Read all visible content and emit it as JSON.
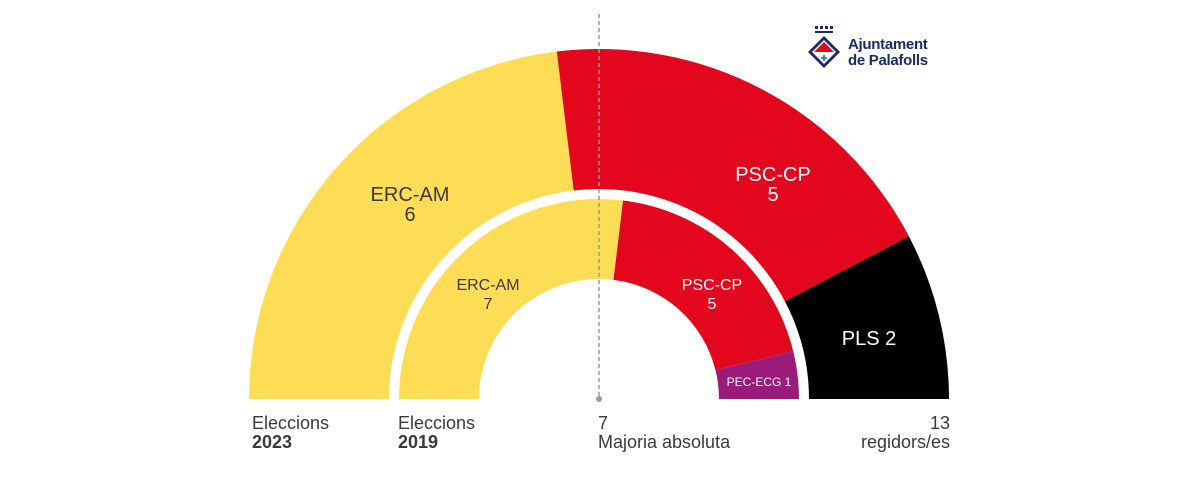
{
  "chart_data": {
    "type": "pie",
    "layout": "parliament-semicircle",
    "total_seats": 13,
    "majority": 7,
    "rings": [
      {
        "name": "Eleccions 2023",
        "parties": [
          {
            "label": "ERC-AM",
            "seats": 6,
            "color": "#FDDD55"
          },
          {
            "label": "PSC-CP",
            "seats": 5,
            "color": "#E3071D"
          },
          {
            "label": "PLS",
            "seats": 2,
            "color": "#000000"
          }
        ]
      },
      {
        "name": "Eleccions 2019",
        "parties": [
          {
            "label": "ERC-AM",
            "seats": 7,
            "color": "#FDDD55"
          },
          {
            "label": "PSC-CP",
            "seats": 5,
            "color": "#E3071D"
          },
          {
            "label": "PEC-ECG",
            "seats": 1,
            "color": "#9B1B7A"
          }
        ]
      }
    ]
  },
  "labels": {
    "outer_erc": "ERC-AM",
    "outer_erc_seats": "6",
    "outer_psc": "PSC-CP",
    "outer_psc_seats": "5",
    "outer_pls": "PLS 2",
    "inner_erc": "ERC-AM",
    "inner_erc_seats": "7",
    "inner_psc": "PSC-CP",
    "inner_psc_seats": "5",
    "inner_pec": "PEC-ECG 1"
  },
  "footer": {
    "outer_line1": "Eleccions",
    "outer_line2": "2023",
    "inner_line1": "Eleccions",
    "inner_line2": "2019",
    "majority_value": "7",
    "majority_label": "Majoria absoluta",
    "total_value": "13",
    "total_label": "regidors/es"
  },
  "logo": {
    "line1": "Ajuntament",
    "line2": "de Palafolls"
  }
}
